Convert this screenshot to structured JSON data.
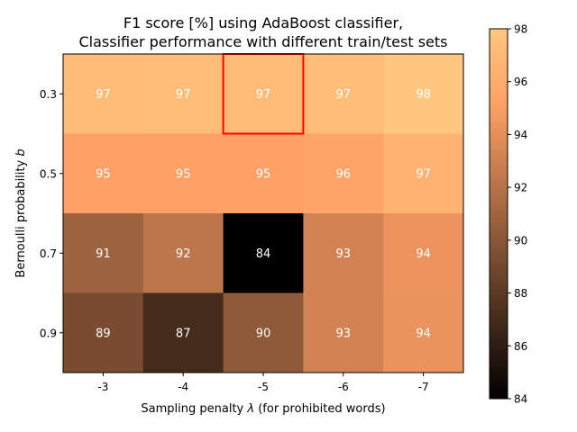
{
  "chart_data": {
    "type": "heatmap",
    "title": [
      "F1 score [%] using AdaBoost classifier,",
      "Classifier performance with different train/test sets"
    ],
    "xlabel_main": "Sampling penalty ",
    "xlabel_symbol": "λ",
    "xlabel_rest": " (for prohibited words)",
    "ylabel_main": "Bernoulli probability ",
    "ylabel_symbol": "b",
    "x_categories": [
      "-3",
      "-4",
      "-5",
      "-6",
      "-7"
    ],
    "y_categories": [
      "0.3",
      "0.5",
      "0.7",
      "0.9"
    ],
    "values": [
      [
        97.2,
        97.3,
        97.2,
        97.3,
        98.0
      ],
      [
        95.3,
        95.3,
        95.3,
        95.6,
        96.6
      ],
      [
        90.9,
        92.3,
        84.0,
        93.2,
        94.4
      ],
      [
        89.3,
        87.0,
        90.3,
        93.2,
        94.3
      ]
    ],
    "labels": [
      [
        "97",
        "97",
        "97",
        "97",
        "98"
      ],
      [
        "95",
        "95",
        "95",
        "96",
        "97"
      ],
      [
        "91",
        "92",
        "84",
        "93",
        "94"
      ],
      [
        "89",
        "87",
        "90",
        "93",
        "94"
      ]
    ],
    "highlight": {
      "row": 0,
      "col": 2,
      "color": "#ff0000"
    },
    "colormap": "copper",
    "colorbar": {
      "min": 84,
      "max": 98,
      "ticks": [
        "84",
        "86",
        "88",
        "90",
        "92",
        "94",
        "96",
        "98"
      ]
    },
    "annotation_color": "#ffffff"
  }
}
